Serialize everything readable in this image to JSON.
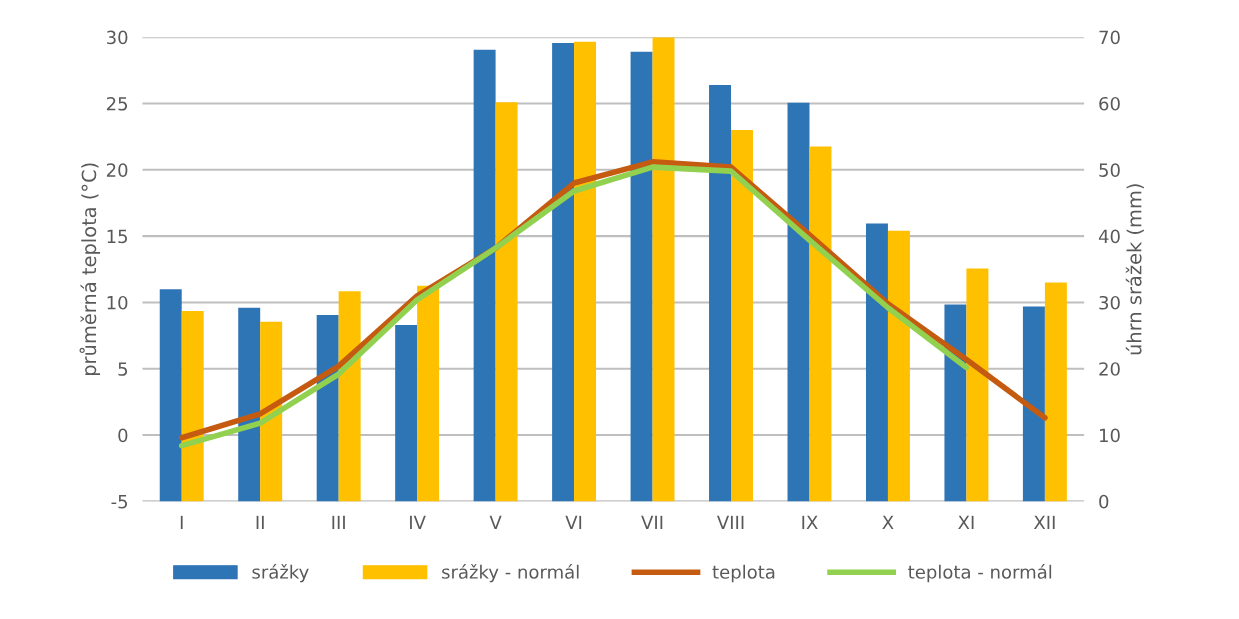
{
  "chart_data": {
    "type": "bar",
    "ylabel": "průměrná teplota (°C)",
    "y2label": "úhrn srážek (mm)",
    "categories": [
      "I",
      "II",
      "III",
      "IV",
      "V",
      "VI",
      "VII",
      "VIII",
      "IX",
      "X",
      "XI",
      "XII"
    ],
    "series": [
      {
        "name": "srážky",
        "axis": "y2",
        "color": "#2e75b6",
        "values": [
          32,
          29.2,
          28.1,
          26.6,
          68.1,
          69.1,
          67.8,
          62.8,
          60.1,
          41.9,
          29.7,
          29.4
        ]
      },
      {
        "name": "srážky - normál",
        "axis": "y2",
        "color": "#ffc000",
        "values": [
          28.7,
          27.1,
          31.7,
          32.5,
          60.2,
          69.3,
          70,
          56,
          53.5,
          40.8,
          35.1,
          33
        ]
      },
      {
        "name": "teplota",
        "type": "line",
        "color": "#c55a11",
        "values": [
          -0.2,
          1.6,
          5.2,
          10.5,
          14.1,
          19,
          20.6,
          20.2,
          15.1,
          9.9,
          5.7,
          1.3
        ]
      },
      {
        "name": "teplota - normál",
        "type": "line",
        "color": "#92d050",
        "values": [
          -0.8,
          0.9,
          4.6,
          10.2,
          14.1,
          18.4,
          20.2,
          19.9,
          14.7,
          9.6,
          5.1,
          null
        ]
      }
    ],
    "ylim": [
      -5,
      30
    ],
    "yticks": [
      -5,
      0,
      5,
      10,
      15,
      20,
      25,
      30
    ],
    "y2lim": [
      0,
      70
    ],
    "y2ticks": [
      0,
      10,
      20,
      30,
      40,
      50,
      60,
      70
    ],
    "grid": "y",
    "legend": "bottom",
    "marker": "none",
    "line_style": "solid"
  }
}
